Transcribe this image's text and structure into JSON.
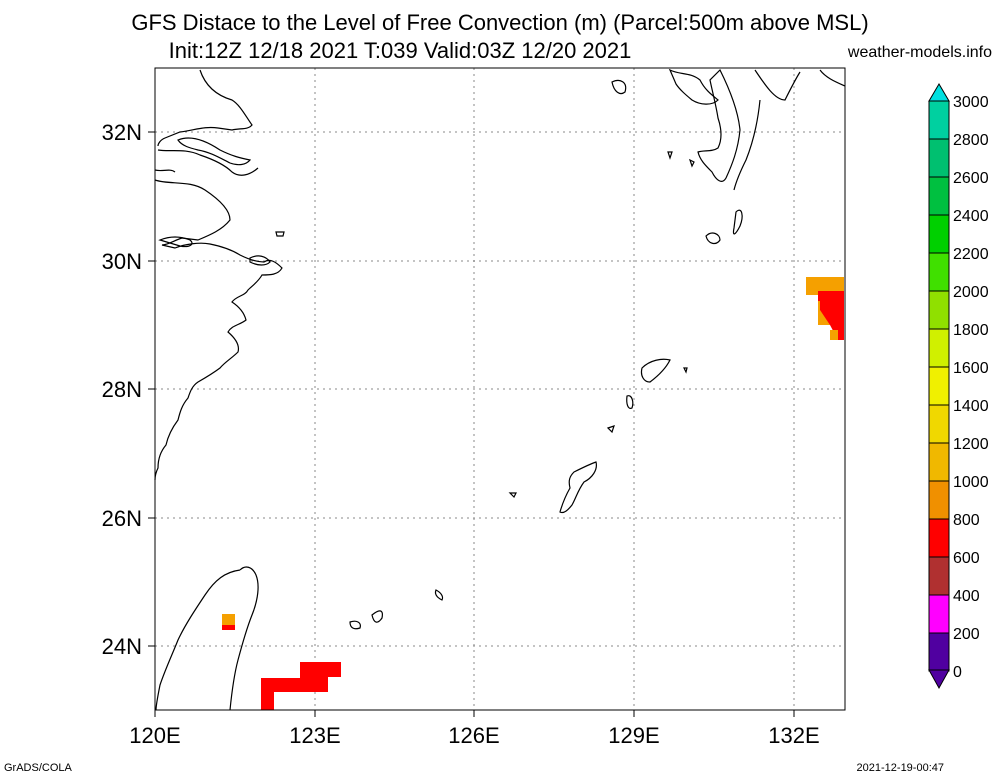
{
  "title_line1": "GFS Distace to the Level of Free Convection (m) (Parcel:500m above MSL)",
  "title_line2": "Init:12Z 12/18 2021 T:039 Valid:03Z 12/20 2021",
  "site": "weather-models.info",
  "footer_left": "GrADS/COLA",
  "footer_right": "2021-12-19-00:47",
  "map": {
    "lat_labels": [
      "32N",
      "30N",
      "28N",
      "26N",
      "24N"
    ],
    "lon_labels": [
      "120E",
      "123E",
      "126E",
      "129E",
      "132E"
    ],
    "lat_range": [
      23,
      33
    ],
    "lon_range": [
      120,
      133
    ]
  },
  "colorbar": {
    "labels": [
      "3000",
      "2800",
      "2600",
      "2400",
      "2200",
      "2000",
      "1800",
      "1600",
      "1400",
      "1200",
      "1000",
      "800",
      "600",
      "400",
      "200",
      "0"
    ],
    "colors": [
      "#00e0e0",
      "#00d0a0",
      "#00c070",
      "#00c040",
      "#00d000",
      "#40e000",
      "#90e000",
      "#d0f000",
      "#f0f000",
      "#f0d800",
      "#f0b800",
      "#f09000",
      "#ff0000",
      "#b03030",
      "#ff00ff",
      "#5000a0"
    ]
  },
  "field_colors": {
    "orange": "#f5a000",
    "red": "#ff0000"
  }
}
